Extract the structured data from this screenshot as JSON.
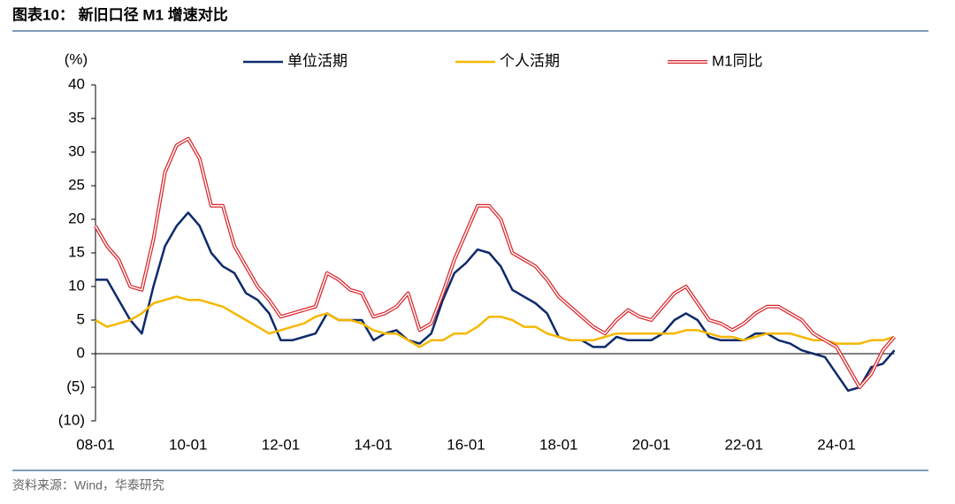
{
  "chart_data": {
    "type": "line",
    "title": "图表10： 新旧口径 M1 增速对比",
    "y_label": "(%)",
    "source": "资料来源：Wind，华泰研究",
    "categories": [
      "08-01",
      null,
      null,
      null,
      null,
      null,
      null,
      null,
      "10-01",
      null,
      null,
      null,
      null,
      null,
      null,
      null,
      "12-01",
      null,
      null,
      null,
      null,
      null,
      null,
      null,
      "14-01",
      null,
      null,
      null,
      null,
      null,
      null,
      null,
      "16-01",
      null,
      null,
      null,
      null,
      null,
      null,
      null,
      "18-01",
      null,
      null,
      null,
      null,
      null,
      null,
      null,
      "20-01",
      null,
      null,
      null,
      null,
      null,
      null,
      null,
      "22-01",
      null,
      null,
      null,
      null,
      null,
      null,
      null,
      "24-01",
      null,
      null,
      null,
      null,
      null
    ],
    "series": [
      {
        "name": "单位活期",
        "color": "#0d2a6b",
        "style": "single",
        "values": [
          11,
          11,
          8,
          5,
          3,
          10,
          16,
          19,
          21,
          19,
          15,
          13,
          12,
          9,
          8,
          6,
          2,
          2,
          2.5,
          3,
          6,
          5,
          5,
          5,
          2,
          3,
          3.5,
          2,
          1.5,
          3,
          8,
          12,
          13.5,
          15.5,
          15,
          13,
          9.5,
          8.5,
          7.5,
          6,
          2.5,
          2,
          2,
          1,
          1,
          2.5,
          2,
          2,
          2,
          3,
          5,
          6,
          5,
          2.5,
          2,
          2,
          2,
          3,
          3,
          2,
          1.5,
          0.5,
          0,
          -0.5,
          -3,
          -5.5,
          -5,
          -2,
          -1.5,
          0.5
        ]
      },
      {
        "name": "个人活期",
        "color": "#f5b800",
        "style": "single",
        "values": [
          5,
          4,
          4.5,
          5,
          6,
          7.5,
          8,
          8.5,
          8,
          8,
          7.5,
          7,
          6,
          5,
          4,
          3,
          3.5,
          4,
          4.5,
          5.5,
          6,
          5,
          5,
          4.5,
          3.5,
          3,
          3,
          2,
          1,
          2,
          2,
          3,
          3,
          4,
          5.5,
          5.5,
          5,
          4,
          4,
          3,
          2.5,
          2,
          2,
          2,
          2.5,
          3,
          3,
          3,
          3,
          3,
          3,
          3.5,
          3.5,
          3,
          2.5,
          2.5,
          2,
          2.5,
          3,
          3,
          3,
          2.5,
          2,
          2,
          1.5,
          1.5,
          1.5,
          2,
          2,
          2.5
        ]
      },
      {
        "name": "M1同比",
        "color": "#d9262b",
        "style": "double",
        "values": [
          19,
          16,
          14,
          10,
          9.5,
          17,
          27,
          31,
          32,
          29,
          22,
          22,
          16,
          13,
          10,
          8,
          5.5,
          6,
          6.5,
          7,
          12,
          11,
          9.5,
          9,
          5.5,
          6,
          7,
          9,
          3.5,
          4.5,
          9,
          14,
          18,
          22,
          22,
          20,
          15,
          14,
          13,
          11,
          8.5,
          7,
          5.5,
          4,
          3,
          5,
          6.5,
          5.5,
          5,
          7,
          9,
          10,
          7.5,
          5,
          4.5,
          3.5,
          4.5,
          6,
          7,
          7,
          6,
          5,
          3,
          2,
          1,
          -2,
          -5,
          -3,
          0.5,
          2.5
        ]
      }
    ],
    "ylim": [
      -10,
      40
    ],
    "yticks": [
      {
        "value": -10,
        "label": "(10)"
      },
      {
        "value": -5,
        "label": "(5)"
      },
      0,
      5,
      10,
      15,
      20,
      25,
      30,
      35,
      40
    ],
    "zero_line": true
  }
}
